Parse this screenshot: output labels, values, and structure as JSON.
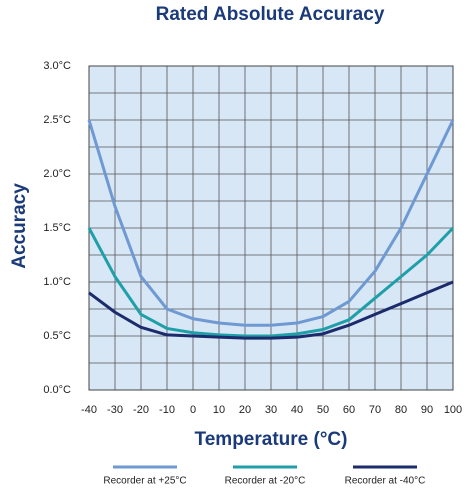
{
  "chart_data": {
    "type": "line",
    "title": "Rated Absolute Accuracy",
    "x_label": "Temperature (°C)",
    "y_label": "Accuracy",
    "x": [
      -40,
      -30,
      -20,
      -10,
      0,
      10,
      20,
      30,
      40,
      50,
      60,
      70,
      80,
      90,
      100
    ],
    "series": [
      {
        "name": "Recorder at +25°C",
        "color": "#6e99d2",
        "values": [
          2.5,
          1.7,
          1.05,
          0.75,
          0.66,
          0.62,
          0.6,
          0.6,
          0.62,
          0.68,
          0.82,
          1.1,
          1.5,
          2.0,
          2.5
        ]
      },
      {
        "name": "Recorder at -20°C",
        "color": "#1f9fa8",
        "values": [
          1.5,
          1.05,
          0.7,
          0.57,
          0.53,
          0.51,
          0.5,
          0.5,
          0.52,
          0.56,
          0.65,
          0.85,
          1.05,
          1.25,
          1.5
        ]
      },
      {
        "name": "Recorder at -40°C",
        "color": "#1b2b6b",
        "values": [
          0.9,
          0.72,
          0.58,
          0.51,
          0.5,
          0.49,
          0.48,
          0.48,
          0.49,
          0.52,
          0.6,
          0.7,
          0.8,
          0.9,
          1.0
        ]
      }
    ],
    "xlim": [
      -40,
      100
    ],
    "xticks": [
      -40,
      -30,
      -20,
      -10,
      0,
      10,
      20,
      30,
      40,
      50,
      60,
      70,
      80,
      90,
      100
    ],
    "ylim": [
      0,
      3
    ],
    "yticks": [
      {
        "value": 0,
        "label": "0.0°C"
      },
      {
        "value": 0.5,
        "label": "0.5°C"
      },
      {
        "value": 1,
        "label": "1.0°C"
      },
      {
        "value": 1.5,
        "label": "1.5°C"
      },
      {
        "value": 2,
        "label": "2.0°C"
      },
      {
        "value": 2.5,
        "label": "2.5°C"
      },
      {
        "value": 3,
        "label": "3.0°C"
      }
    ],
    "yminorticks": [
      0.25,
      0.75,
      1.25,
      1.75,
      2.25,
      2.75
    ],
    "grid": true,
    "legend": "bottom"
  }
}
